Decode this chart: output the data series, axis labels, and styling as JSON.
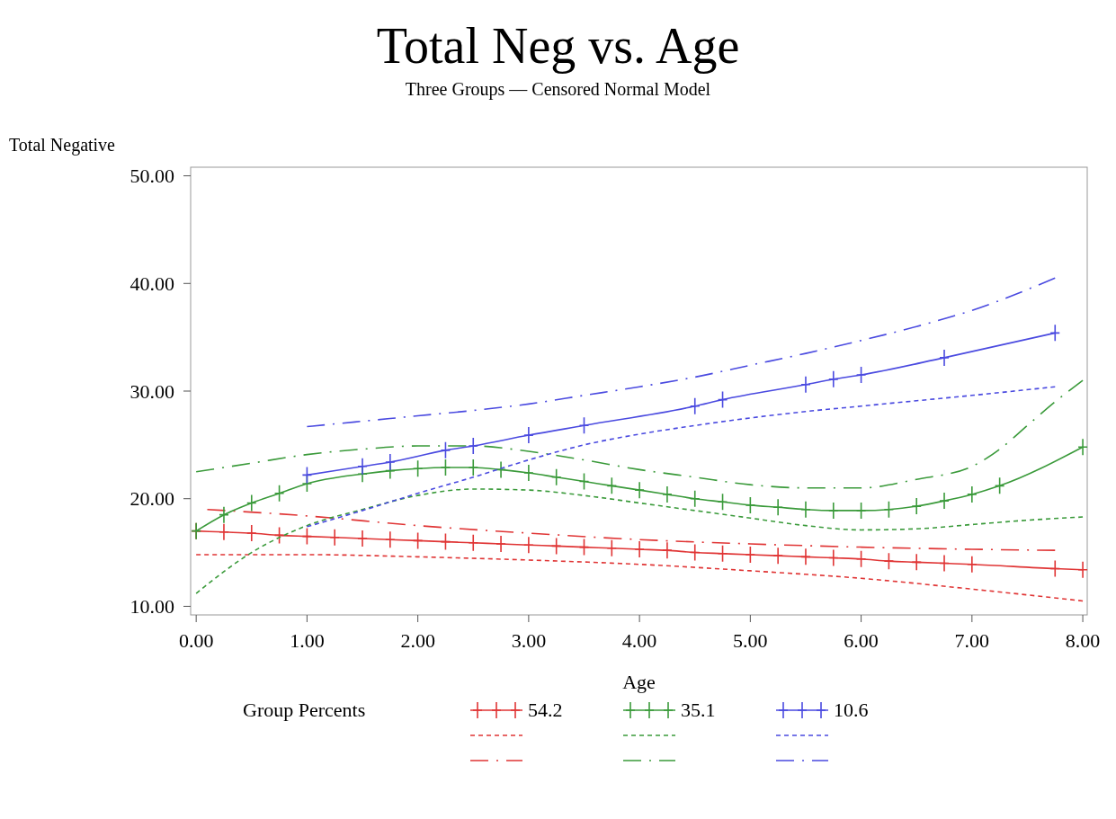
{
  "chart_data": {
    "type": "line",
    "title": "Total Neg vs. Age",
    "subtitle": "Three Groups — Censored Normal Model",
    "xlabel": "Age",
    "ylabel": "Total Negative",
    "legend_title": "Group Percents",
    "legend": "bottom",
    "grid": false,
    "xlim": [
      -0.05,
      8.04
    ],
    "ylim": [
      9.2,
      50.8
    ],
    "xticks": [
      {
        "value": 0,
        "label": "0.00"
      },
      {
        "value": 1,
        "label": "1.00"
      },
      {
        "value": 2,
        "label": "2.00"
      },
      {
        "value": 3,
        "label": "3.00"
      },
      {
        "value": 4,
        "label": "4.00"
      },
      {
        "value": 5,
        "label": "5.00"
      },
      {
        "value": 6,
        "label": "6.00"
      },
      {
        "value": 7,
        "label": "7.00"
      },
      {
        "value": 8,
        "label": "8.00"
      }
    ],
    "yticks": [
      {
        "value": 10,
        "label": "10.00"
      },
      {
        "value": 20,
        "label": "20.00"
      },
      {
        "value": 30,
        "label": "30.00"
      },
      {
        "value": 40,
        "label": "40.00"
      },
      {
        "value": 50,
        "label": "50.00"
      }
    ],
    "series": [
      {
        "name": "54.2",
        "color": "#e03535",
        "marker": "cross",
        "line_style": "solid",
        "x": [
          0,
          0.25,
          0.5,
          0.75,
          1,
          1.25,
          1.5,
          1.75,
          2,
          2.25,
          2.5,
          2.75,
          3,
          3.25,
          3.5,
          3.75,
          4,
          4.25,
          4.5,
          4.75,
          5,
          5.25,
          5.5,
          5.75,
          6,
          6.25,
          6.5,
          6.75,
          7,
          7.75,
          8
        ],
        "values": [
          17.0,
          16.9,
          16.8,
          16.6,
          16.5,
          16.4,
          16.3,
          16.2,
          16.1,
          16.0,
          15.9,
          15.8,
          15.7,
          15.6,
          15.5,
          15.4,
          15.3,
          15.2,
          15.0,
          14.9,
          14.8,
          14.7,
          14.6,
          14.5,
          14.4,
          14.2,
          14.1,
          14.0,
          13.9,
          13.5,
          13.4
        ]
      },
      {
        "color": "#e03535",
        "marker": "none",
        "line_style": "dotted",
        "x": [
          0,
          1,
          2,
          3,
          4,
          5,
          6,
          7,
          8
        ],
        "values": [
          14.8,
          14.8,
          14.6,
          14.3,
          13.9,
          13.3,
          12.6,
          11.6,
          10.5
        ]
      },
      {
        "color": "#e03535",
        "marker": "none",
        "line_style": "dashed",
        "x": [
          0.1,
          1,
          2,
          3,
          4,
          5,
          6,
          7,
          7.75
        ],
        "values": [
          19.0,
          18.4,
          17.5,
          16.8,
          16.2,
          15.8,
          15.5,
          15.3,
          15.2
        ]
      },
      {
        "name": "35.1",
        "color": "#3a9a3a",
        "marker": "cross",
        "line_style": "solid",
        "x": [
          0,
          0.25,
          0.5,
          0.75,
          1,
          1.5,
          1.75,
          2,
          2.25,
          2.5,
          2.75,
          3,
          3.25,
          3.5,
          3.75,
          4,
          4.25,
          4.5,
          4.75,
          5,
          5.25,
          5.5,
          5.75,
          6,
          6.25,
          6.5,
          6.75,
          7,
          7.25,
          8
        ],
        "values": [
          17.0,
          18.5,
          19.6,
          20.5,
          21.4,
          22.3,
          22.6,
          22.8,
          22.9,
          22.9,
          22.7,
          22.4,
          22.0,
          21.6,
          21.2,
          20.8,
          20.4,
          20.0,
          19.7,
          19.4,
          19.2,
          19.0,
          18.9,
          18.9,
          19.0,
          19.3,
          19.8,
          20.4,
          21.2,
          24.8
        ]
      },
      {
        "color": "#3a9a3a",
        "marker": "none",
        "line_style": "dotted",
        "x": [
          0,
          0.5,
          1,
          1.5,
          2,
          2.5,
          3,
          3.5,
          4,
          4.5,
          5,
          5.5,
          6,
          6.5,
          7,
          7.5,
          8
        ],
        "values": [
          11.2,
          15.0,
          17.5,
          19.0,
          20.3,
          20.9,
          20.8,
          20.3,
          19.6,
          18.9,
          18.2,
          17.5,
          17.1,
          17.2,
          17.6,
          18.0,
          18.3
        ]
      },
      {
        "color": "#3a9a3a",
        "marker": "none",
        "line_style": "dashed",
        "x": [
          0,
          0.5,
          1,
          1.5,
          2,
          2.5,
          3,
          3.5,
          4,
          4.5,
          5,
          5.5,
          6,
          6.5,
          7,
          7.25,
          7.5,
          7.75,
          8
        ],
        "values": [
          22.5,
          23.3,
          24.1,
          24.6,
          24.9,
          24.9,
          24.4,
          23.6,
          22.7,
          22.0,
          21.3,
          21.0,
          21.0,
          21.8,
          23.0,
          24.6,
          26.8,
          29.0,
          31.0
        ]
      },
      {
        "name": "10.6",
        "color": "#4a4ae0",
        "marker": "cross",
        "line_style": "solid",
        "x": [
          1,
          1.5,
          1.75,
          2.25,
          2.5,
          3,
          3.5,
          4.5,
          4.75,
          5.5,
          5.75,
          6,
          6.75,
          7.75
        ],
        "values": [
          22.2,
          23.0,
          23.4,
          24.5,
          24.9,
          25.9,
          26.8,
          28.6,
          29.2,
          30.6,
          31.1,
          31.5,
          33.1,
          35.4
        ]
      },
      {
        "color": "#4a4ae0",
        "marker": "none",
        "line_style": "dotted",
        "x": [
          1,
          1.5,
          2,
          2.5,
          3,
          3.5,
          4,
          4.5,
          5,
          5.5,
          6,
          6.5,
          7,
          7.75
        ],
        "values": [
          17.4,
          18.9,
          20.5,
          22.0,
          23.6,
          25.0,
          26.0,
          26.8,
          27.5,
          28.1,
          28.6,
          29.1,
          29.6,
          30.4
        ]
      },
      {
        "color": "#4a4ae0",
        "marker": "none",
        "line_style": "dashed",
        "x": [
          1,
          1.5,
          2,
          2.5,
          3,
          3.5,
          4,
          4.5,
          5,
          5.5,
          6,
          6.5,
          7,
          7.75
        ],
        "values": [
          26.7,
          27.2,
          27.7,
          28.2,
          28.8,
          29.6,
          30.4,
          31.3,
          32.4,
          33.5,
          34.7,
          36.0,
          37.5,
          40.5
        ]
      }
    ]
  }
}
